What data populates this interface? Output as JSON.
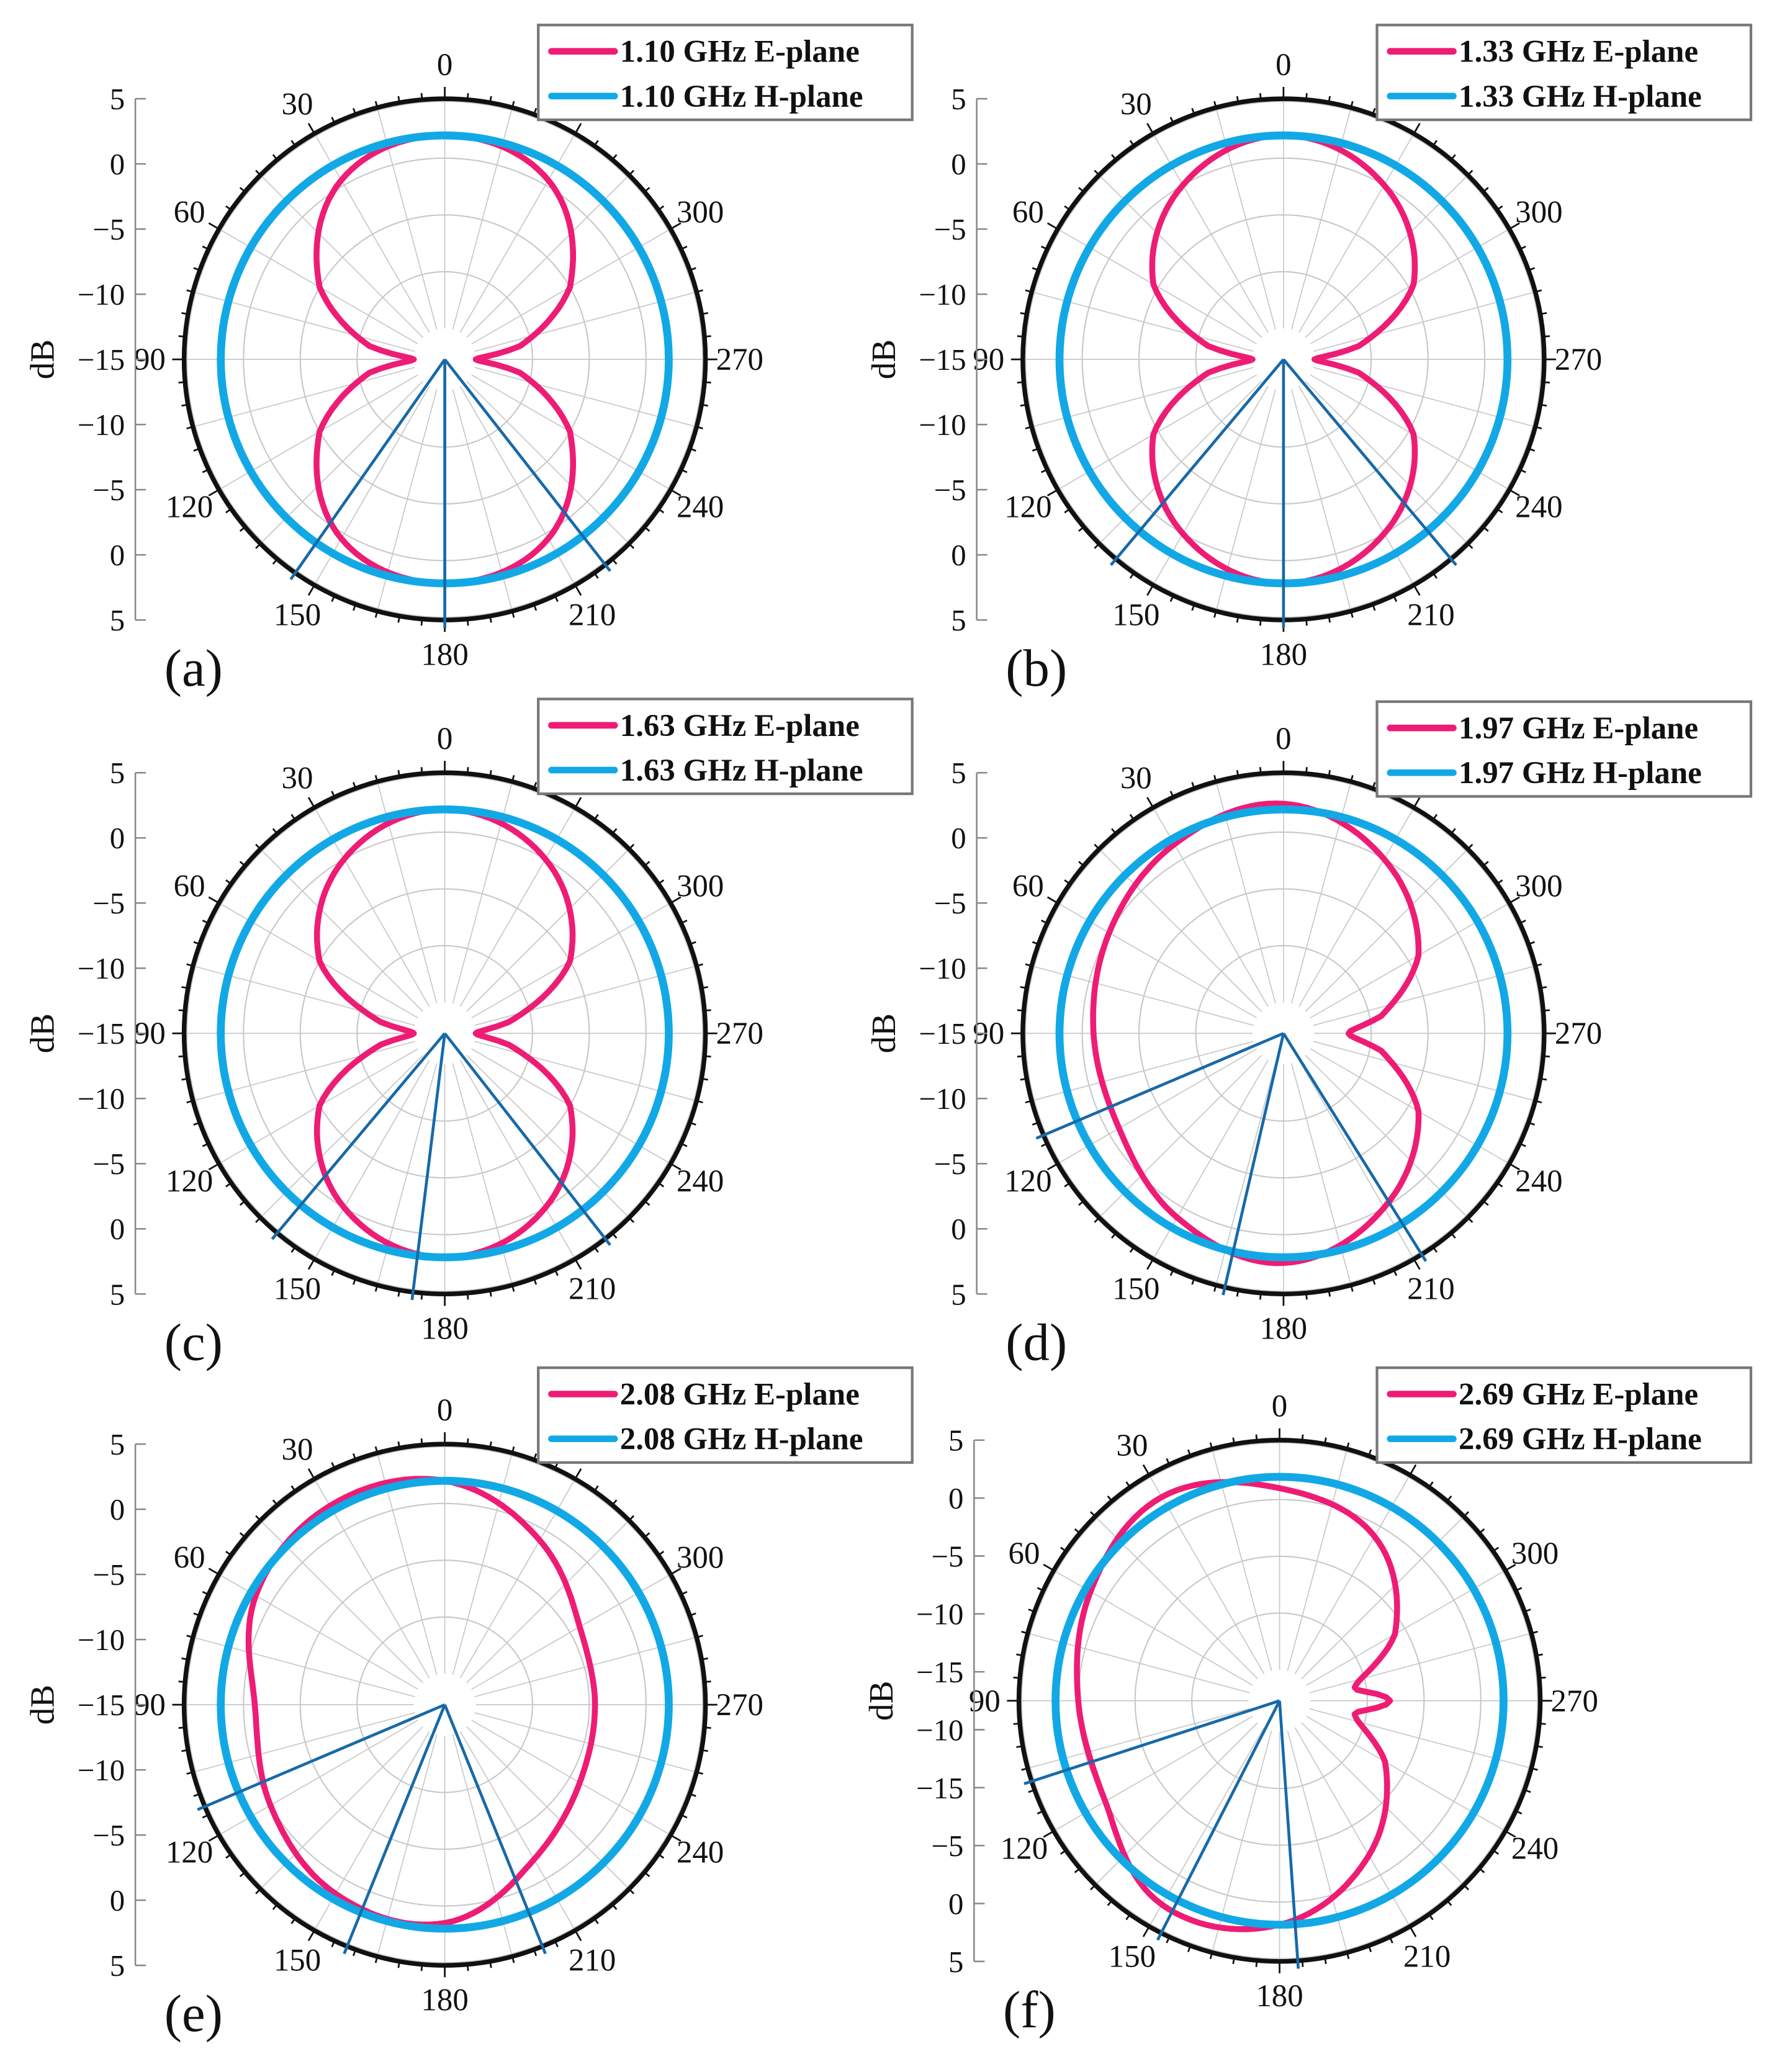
{
  "figure": {
    "y_axis_title": "dB",
    "colors": {
      "e_plane": "#ee1c74",
      "h_plane": "#12a8e6",
      "cursor": "#1769a8",
      "outer_ring": "#111111",
      "grid": "#c8c8c8"
    }
  },
  "chart_data": [
    {
      "panel": "(a)",
      "type": "polar-line",
      "radial_tick_labels": [
        "5",
        "0",
        "−5",
        "−10",
        "−15",
        "−10",
        "−5",
        "0",
        "5"
      ],
      "radial_range_db": [
        -15,
        5
      ],
      "grid_step_db": 5,
      "angle_ticks": [
        "0",
        "30",
        "60",
        "90",
        "120",
        "150",
        "180",
        "210",
        "240",
        "270",
        "300"
      ],
      "angle_direction": "counterclockwise from top",
      "legend_position": "top-right",
      "series": [
        {
          "name": "1.10 GHz E-plane",
          "theta": [
            0,
            30,
            60,
            80,
            90,
            100,
            120,
            150,
            180,
            210,
            240,
            260,
            270,
            280,
            300,
            330
          ],
          "values_db": [
            2,
            0.5,
            -5,
            -11,
            -15,
            -11,
            -5,
            0.5,
            2,
            0.5,
            -5,
            -11,
            -15,
            -11,
            -5,
            0.5
          ]
        },
        {
          "name": "1.10 GHz H-plane",
          "theta": [
            0,
            90,
            180,
            270
          ],
          "values_db": [
            2,
            2,
            2,
            2
          ]
        }
      ],
      "cursor_angles": [
        145,
        180,
        218
      ]
    },
    {
      "panel": "(b)",
      "type": "polar-line",
      "radial_tick_labels": [
        "5",
        "0",
        "−5",
        "−10",
        "−15",
        "−10",
        "−5",
        "0",
        "5"
      ],
      "radial_range_db": [
        -15,
        5
      ],
      "grid_step_db": 5,
      "angle_ticks": [
        "0",
        "30",
        "60",
        "90",
        "120",
        "150",
        "180",
        "210",
        "240",
        "270",
        "300"
      ],
      "angle_direction": "counterclockwise from top",
      "legend_position": "top-right",
      "series": [
        {
          "name": "1.33 GHz E-plane",
          "theta": [
            0,
            30,
            60,
            80,
            90,
            100,
            120,
            150,
            180,
            210,
            240,
            260,
            270,
            280,
            300,
            330
          ],
          "values_db": [
            2,
            0,
            -4.5,
            -11,
            -15,
            -11,
            -4.5,
            0,
            2,
            0,
            -4.5,
            -11,
            -15,
            -11,
            -4.5,
            0
          ]
        },
        {
          "name": "1.33 GHz H-plane",
          "theta": [
            0,
            90,
            180,
            270
          ],
          "values_db": [
            2,
            2,
            2,
            2
          ]
        }
      ],
      "cursor_angles": [
        140,
        180,
        220
      ]
    },
    {
      "panel": "(c)",
      "type": "polar-line",
      "radial_tick_labels": [
        "5",
        "0",
        "−5",
        "−10",
        "−15",
        "−10",
        "−5",
        "0",
        "5"
      ],
      "radial_range_db": [
        -15,
        5
      ],
      "grid_step_db": 5,
      "angle_ticks": [
        "0",
        "30",
        "60",
        "90",
        "120",
        "150",
        "180",
        "210",
        "240",
        "270",
        "300"
      ],
      "angle_direction": "counterclockwise from top",
      "legend_position": "top-right",
      "series": [
        {
          "name": "1.63 GHz E-plane",
          "theta": [
            0,
            30,
            60,
            80,
            90,
            100,
            120,
            150,
            180,
            210,
            240,
            260,
            270,
            280,
            300,
            330
          ],
          "values_db": [
            2,
            0,
            -5,
            -12,
            -15,
            -12,
            -5,
            0,
            2,
            0,
            -5,
            -12,
            -15,
            -12,
            -5,
            0
          ]
        },
        {
          "name": "1.63 GHz H-plane",
          "theta": [
            0,
            90,
            180,
            270
          ],
          "values_db": [
            2,
            2,
            2,
            2
          ]
        }
      ],
      "cursor_angles": [
        140,
        173,
        218
      ]
    },
    {
      "panel": "(d)",
      "type": "polar-line",
      "radial_tick_labels": [
        "5",
        "0",
        "−5",
        "−10",
        "−15",
        "−10",
        "−5",
        "0",
        "5"
      ],
      "radial_range_db": [
        -15,
        5
      ],
      "grid_step_db": 5,
      "angle_ticks": [
        "0",
        "30",
        "60",
        "90",
        "120",
        "150",
        "180",
        "210",
        "240",
        "270",
        "300"
      ],
      "angle_direction": "counterclockwise from top",
      "legend_position": "top-right",
      "series": [
        {
          "name": "1.97 GHz E-plane",
          "theta": [
            0,
            30,
            60,
            90,
            120,
            150,
            180,
            210,
            240,
            260,
            270,
            280,
            300,
            330
          ],
          "values_db": [
            2.5,
            1.5,
            0,
            -1,
            -1,
            1,
            2.5,
            0,
            -4,
            -9,
            -12,
            -9,
            -4,
            0
          ]
        },
        {
          "name": "1.97 GHz H-plane",
          "theta": [
            0,
            90,
            180,
            270
          ],
          "values_db": [
            2,
            2,
            2,
            2
          ]
        }
      ],
      "cursor_angles": [
        113,
        167,
        212
      ]
    },
    {
      "panel": "(e)",
      "type": "polar-line",
      "radial_tick_labels": [
        "5",
        "0",
        "−5",
        "−10",
        "−15",
        "−10",
        "−5",
        "0",
        "5"
      ],
      "radial_range_db": [
        -15,
        5
      ],
      "grid_step_db": 5,
      "angle_ticks": [
        "0",
        "30",
        "60",
        "90",
        "120",
        "150",
        "180",
        "210",
        "240",
        "270",
        "300"
      ],
      "angle_direction": "counterclockwise from top",
      "legend_position": "top-right",
      "series": [
        {
          "name": "2.08 GHz E-plane",
          "theta": [
            0,
            30,
            60,
            90,
            120,
            150,
            180,
            210,
            240,
            270,
            300,
            330
          ],
          "values_db": [
            2,
            2.5,
            1.5,
            -1,
            0,
            1.5,
            1.5,
            -2,
            -4,
            -4.5,
            -4,
            -1
          ]
        },
        {
          "name": "2.08 GHz H-plane",
          "theta": [
            0,
            90,
            180,
            270
          ],
          "values_db": [
            2,
            2,
            2,
            2
          ]
        }
      ],
      "cursor_angles": [
        113,
        158,
        202
      ]
    },
    {
      "panel": "(f)",
      "type": "polar-line",
      "radial_tick_labels": [
        "5",
        "0",
        "−5",
        "−10",
        "−15",
        "−10",
        "−15",
        "−5",
        "0",
        "5"
      ],
      "radial_range_db": [
        -15,
        5
      ],
      "grid_step_db": 5,
      "angle_ticks": [
        "0",
        "30",
        "60",
        "90",
        "120",
        "150",
        "180",
        "210",
        "240",
        "270",
        "300"
      ],
      "angle_direction": "counterclockwise from top",
      "legend_position": "top-right",
      "series": [
        {
          "name": "2.69 GHz E-plane",
          "theta": [
            0,
            30,
            60,
            90,
            120,
            150,
            180,
            210,
            240,
            260,
            270,
            280,
            300,
            330
          ],
          "values_db": [
            1,
            3,
            1.5,
            0,
            0,
            3,
            2,
            -2,
            -7,
            -11,
            -8,
            -11,
            -6,
            -1
          ]
        },
        {
          "name": "2.69 GHz H-plane",
          "theta": [
            0,
            90,
            180,
            270
          ],
          "values_db": [
            2,
            2,
            2,
            2
          ]
        }
      ],
      "cursor_angles": [
        108,
        153,
        184
      ]
    }
  ]
}
